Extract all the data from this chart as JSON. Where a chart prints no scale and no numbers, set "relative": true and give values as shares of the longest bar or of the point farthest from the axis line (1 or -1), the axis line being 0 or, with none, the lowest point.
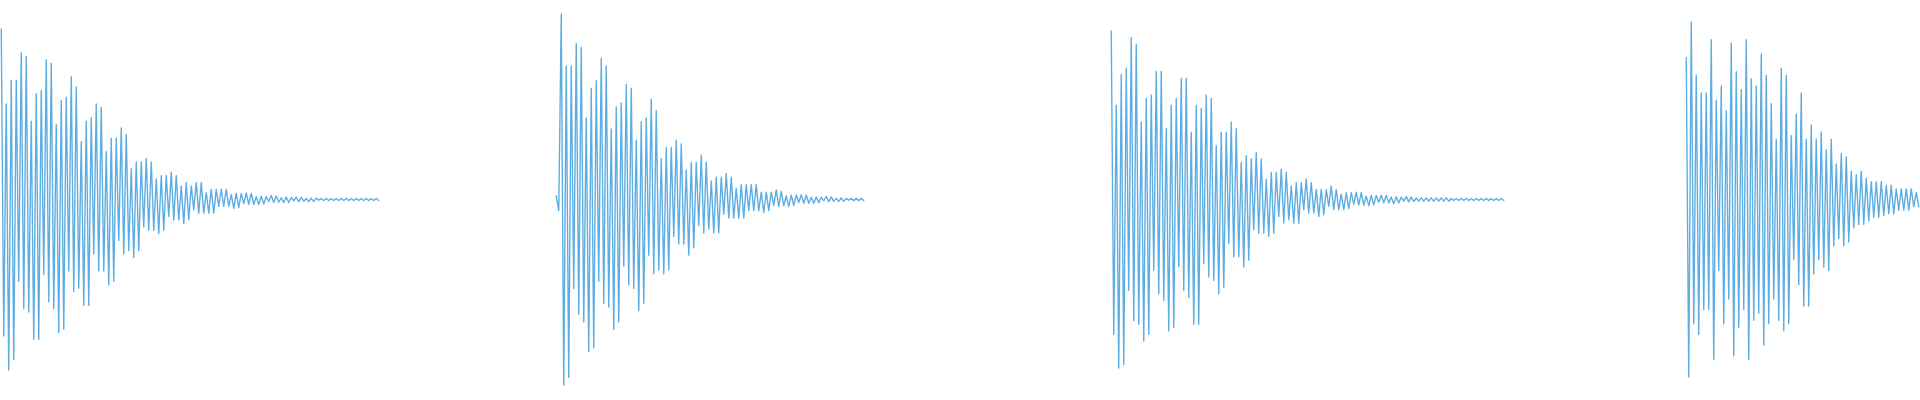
{
  "chart_data": [
    {
      "type": "line",
      "relative": true,
      "categories": [
        null,
        null,
        null,
        null,
        null,
        null,
        null,
        null,
        null,
        null,
        null,
        null,
        null,
        null,
        null,
        null,
        null,
        null,
        null,
        null,
        null,
        null,
        null,
        null,
        null,
        null,
        null,
        null,
        null,
        null,
        null,
        null,
        null,
        null,
        null,
        null,
        null,
        null,
        null,
        null,
        null,
        null,
        null,
        null,
        null,
        null,
        null,
        null,
        null,
        null,
        null,
        null,
        null,
        null,
        null,
        null,
        null,
        null,
        null,
        null,
        null,
        null,
        null,
        null,
        null,
        null,
        null,
        null,
        null,
        null,
        null,
        null,
        null,
        null,
        null,
        null,
        null,
        null,
        null,
        null,
        null,
        null,
        null,
        null,
        null,
        null,
        null,
        null,
        null,
        null,
        null,
        null,
        null,
        null,
        null,
        null,
        null,
        null,
        null,
        null,
        null,
        null,
        null,
        null,
        null,
        null,
        null,
        null,
        null,
        null,
        null,
        null,
        null,
        null,
        null,
        null,
        null,
        null,
        null,
        null,
        null,
        null,
        null,
        null,
        null,
        null,
        null,
        null,
        null,
        null,
        null,
        null,
        null,
        null,
        null,
        null,
        null,
        null,
        null,
        null,
        null,
        null,
        null,
        null,
        null,
        null,
        null,
        null,
        null,
        null,
        null,
        null
      ],
      "series": [
        {
          "color": "#5dade2",
          "values": [
            1,
            0.1,
            0.78,
            0,
            0.85,
            0.03,
            0.85,
            0.26,
            0.93,
            0.18,
            0.92,
            0.17,
            0.73,
            0.09,
            0.81,
            0.09,
            0.82,
            0.28,
            0.91,
            0.2,
            0.9,
            0.18,
            0.72,
            0.11,
            0.79,
            0.12,
            0.8,
            0.29,
            0.86,
            0.23,
            0.83,
            0.24,
            0.67,
            0.19,
            0.73,
            0.19,
            0.74,
            0.34,
            0.78,
            0.29,
            0.77,
            0.29,
            0.64,
            0.25,
            0.68,
            0.26,
            0.68,
            0.38,
            0.71,
            0.34,
            0.69,
            0.35,
            0.59,
            0.33,
            0.61,
            0.35,
            0.61,
            0.42,
            0.62,
            0.41,
            0.61,
            0.41,
            0.56,
            0.4,
            0.57,
            0.41,
            0.57,
            0.45,
            0.58,
            0.44,
            0.57,
            0.44,
            0.54,
            0.43,
            0.55,
            0.44,
            0.54,
            0.47,
            0.55,
            0.46,
            0.55,
            0.46,
            0.52,
            0.46,
            0.53,
            0.46,
            0.53,
            0.48,
            0.53,
            0.48,
            0.53,
            0.48,
            0.515,
            0.474,
            0.518,
            0.476,
            0.518,
            0.488,
            0.519,
            0.486,
            0.518,
            0.486,
            0.508,
            0.485,
            0.51,
            0.487,
            0.509,
            0.494,
            0.512,
            0.491,
            0.51,
            0.492,
            0.505,
            0.491,
            0.507,
            0.491,
            0.506,
            0.496,
            0.507,
            0.494,
            0.506,
            0.495,
            0.503,
            0.494,
            0.504,
            0.494,
            0.504,
            0.498,
            0.503,
            0.497,
            0.503,
            0.497,
            0.503,
            0.497,
            0.503,
            0.497,
            0.503,
            0.497,
            0.503,
            0.497,
            0.503,
            0.497,
            0.503,
            0.497,
            0.503,
            0.497,
            0.503,
            0.497,
            0.503,
            0.497,
            0.503,
            0.497
          ]
        }
      ]
    },
    {
      "type": "line",
      "relative": true,
      "categories": [
        null,
        null,
        null,
        null,
        null,
        null,
        null,
        null,
        null,
        null,
        null,
        null,
        null,
        null,
        null,
        null,
        null,
        null,
        null,
        null,
        null,
        null,
        null,
        null,
        null,
        null,
        null,
        null,
        null,
        null,
        null,
        null,
        null,
        null,
        null,
        null,
        null,
        null,
        null,
        null,
        null,
        null,
        null,
        null,
        null,
        null,
        null,
        null,
        null,
        null,
        null,
        null,
        null,
        null,
        null,
        null,
        null,
        null,
        null,
        null,
        null,
        null,
        null,
        null,
        null,
        null,
        null,
        null,
        null,
        null,
        null,
        null,
        null,
        null,
        null,
        null,
        null,
        null,
        null,
        null,
        null,
        null,
        null,
        null,
        null,
        null,
        null,
        null,
        null,
        null,
        null,
        null,
        null,
        null,
        null,
        null,
        null,
        null,
        null,
        null,
        null,
        null,
        null,
        null,
        null,
        null,
        null,
        null,
        null,
        null,
        null,
        null,
        null,
        null,
        null,
        null,
        null,
        null,
        null,
        null,
        null,
        null,
        null,
        null
      ],
      "series": [
        {
          "color": "#5dade2",
          "values": [
            0.51,
            0.47,
            1,
            0,
            0.86,
            0.02,
            0.86,
            0.26,
            0.92,
            0.19,
            0.91,
            0.17,
            0.72,
            0.09,
            0.8,
            0.1,
            0.82,
            0.28,
            0.88,
            0.22,
            0.86,
            0.21,
            0.69,
            0.15,
            0.75,
            0.17,
            0.76,
            0.32,
            0.81,
            0.27,
            0.8,
            0.26,
            0.66,
            0.2,
            0.71,
            0.22,
            0.72,
            0.35,
            0.77,
            0.3,
            0.74,
            0.31,
            0.61,
            0.3,
            0.64,
            0.31,
            0.64,
            0.4,
            0.66,
            0.38,
            0.65,
            0.38,
            0.58,
            0.35,
            0.6,
            0.37,
            0.6,
            0.43,
            0.62,
            0.41,
            0.6,
            0.42,
            0.55,
            0.41,
            0.56,
            0.41,
            0.56,
            0.46,
            0.57,
            0.45,
            0.56,
            0.45,
            0.53,
            0.45,
            0.54,
            0.45,
            0.54,
            0.47,
            0.54,
            0.47,
            0.54,
            0.47,
            0.52,
            0.465,
            0.52,
            0.47,
            0.52,
            0.484,
            0.526,
            0.481,
            0.522,
            0.483,
            0.51,
            0.481,
            0.512,
            0.484,
            0.512,
            0.492,
            0.513,
            0.49,
            0.512,
            0.49,
            0.506,
            0.489,
            0.507,
            0.491,
            0.506,
            0.496,
            0.508,
            0.494,
            0.507,
            0.495,
            0.503,
            0.495,
            0.504,
            0.495,
            0.503,
            0.498,
            0.503,
            0.497,
            0.503,
            0.497,
            0.503,
            0.497
          ]
        }
      ]
    },
    {
      "type": "line",
      "relative": true,
      "categories": [
        null,
        null,
        null,
        null,
        null,
        null,
        null,
        null,
        null,
        null,
        null,
        null,
        null,
        null,
        null,
        null,
        null,
        null,
        null,
        null,
        null,
        null,
        null,
        null,
        null,
        null,
        null,
        null,
        null,
        null,
        null,
        null,
        null,
        null,
        null,
        null,
        null,
        null,
        null,
        null,
        null,
        null,
        null,
        null,
        null,
        null,
        null,
        null,
        null,
        null,
        null,
        null,
        null,
        null,
        null,
        null,
        null,
        null,
        null,
        null,
        null,
        null,
        null,
        null,
        null,
        null,
        null,
        null,
        null,
        null,
        null,
        null,
        null,
        null,
        null,
        null,
        null,
        null,
        null,
        null,
        null,
        null,
        null,
        null,
        null,
        null,
        null,
        null,
        null,
        null,
        null,
        null,
        null,
        null,
        null,
        null,
        null,
        null,
        null,
        null,
        null,
        null,
        null,
        null,
        null,
        null,
        null,
        null,
        null,
        null,
        null,
        null,
        null,
        null,
        null,
        null,
        null,
        null,
        null,
        null,
        null,
        null,
        null,
        null,
        null,
        null,
        null,
        null,
        null,
        null,
        null,
        null,
        null,
        null,
        null,
        null,
        null,
        null,
        null,
        null,
        null,
        null,
        null,
        null,
        null,
        null,
        null,
        null,
        null,
        null,
        null,
        null,
        null,
        null,
        null,
        null,
        null,
        null
      ],
      "series": [
        {
          "color": "#5dade2",
          "values": [
            1,
            0.1,
            0.78,
            0,
            0.87,
            0.01,
            0.89,
            0.23,
            0.98,
            0.14,
            0.96,
            0.13,
            0.73,
            0.08,
            0.8,
            0.1,
            0.81,
            0.29,
            0.88,
            0.22,
            0.88,
            0.2,
            0.71,
            0.11,
            0.78,
            0.12,
            0.8,
            0.3,
            0.86,
            0.23,
            0.86,
            0.21,
            0.7,
            0.13,
            0.78,
            0.13,
            0.77,
            0.31,
            0.81,
            0.27,
            0.8,
            0.26,
            0.66,
            0.22,
            0.7,
            0.24,
            0.7,
            0.37,
            0.73,
            0.33,
            0.71,
            0.33,
            0.61,
            0.3,
            0.63,
            0.32,
            0.62,
            0.41,
            0.64,
            0.4,
            0.62,
            0.4,
            0.56,
            0.39,
            0.58,
            0.4,
            0.58,
            0.45,
            0.59,
            0.43,
            0.58,
            0.44,
            0.54,
            0.43,
            0.55,
            0.43,
            0.55,
            0.47,
            0.56,
            0.46,
            0.55,
            0.46,
            0.53,
            0.45,
            0.53,
            0.455,
            0.53,
            0.48,
            0.54,
            0.47,
            0.53,
            0.47,
            0.516,
            0.47,
            0.52,
            0.473,
            0.52,
            0.486,
            0.522,
            0.483,
            0.521,
            0.483,
            0.51,
            0.482,
            0.512,
            0.484,
            0.512,
            0.492,
            0.513,
            0.49,
            0.512,
            0.49,
            0.507,
            0.488,
            0.508,
            0.49,
            0.507,
            0.495,
            0.509,
            0.493,
            0.507,
            0.494,
            0.505,
            0.495,
            0.505,
            0.495,
            0.505,
            0.495,
            0.505,
            0.495,
            0.505,
            0.495,
            0.505,
            0.495,
            0.505,
            0.495,
            0.503,
            0.497,
            0.503,
            0.497,
            0.503,
            0.497,
            0.503,
            0.497,
            0.503,
            0.497,
            0.503,
            0.497,
            0.503,
            0.497,
            0.503,
            0.497,
            0.503,
            0.497,
            0.503,
            0.497,
            0.503,
            0.497
          ]
        }
      ]
    },
    {
      "type": "line",
      "relative": true,
      "categories": [
        null,
        null,
        null,
        null,
        null,
        null,
        null,
        null,
        null,
        null,
        null,
        null,
        null,
        null,
        null,
        null,
        null,
        null,
        null,
        null,
        null,
        null,
        null,
        null,
        null,
        null,
        null,
        null,
        null,
        null,
        null,
        null,
        null,
        null,
        null,
        null,
        null,
        null,
        null,
        null,
        null,
        null,
        null,
        null,
        null,
        null,
        null,
        null,
        null,
        null,
        null,
        null,
        null,
        null,
        null,
        null,
        null,
        null,
        null,
        null,
        null,
        null,
        null,
        null,
        null,
        null,
        null,
        null,
        null,
        null,
        null,
        null,
        null,
        null,
        null,
        null,
        null,
        null,
        null,
        null,
        null,
        null,
        null,
        null,
        null,
        null,
        null,
        null,
        null,
        null,
        null,
        null,
        null,
        null
      ],
      "series": [
        {
          "color": "#5dade2",
          "values": [
            0.9,
            0,
            1,
            0.15,
            0.85,
            0.12,
            0.8,
            0.19,
            0.8,
            0.19,
            0.95,
            0.05,
            0.78,
            0.3,
            0.82,
            0.15,
            0.75,
            0.22,
            0.94,
            0.06,
            0.86,
            0.14,
            0.81,
            0.19,
            0.95,
            0.05,
            0.84,
            0.16,
            0.82,
            0.18,
            0.91,
            0.09,
            0.85,
            0.15,
            0.77,
            0.22,
            0.67,
            0.16,
            0.87,
            0.13,
            0.85,
            0.15,
            0.68,
            0.33,
            0.74,
            0.26,
            0.8,
            0.2,
            0.67,
            0.2,
            0.71,
            0.29,
            0.67,
            0.33,
            0.69,
            0.31,
            0.64,
            0.3,
            0.67,
            0.37,
            0.6,
            0.39,
            0.63,
            0.37,
            0.62,
            0.38,
            0.58,
            0.42,
            0.57,
            0.43,
            0.58,
            0.43,
            0.56,
            0.44,
            0.55,
            0.45,
            0.55,
            0.45,
            0.55,
            0.455,
            0.54,
            0.46,
            0.54,
            0.46,
            0.53,
            0.47,
            0.53,
            0.47,
            0.53,
            0.47,
            0.53,
            0.48,
            0.52,
            0.48
          ]
        }
      ]
    }
  ]
}
